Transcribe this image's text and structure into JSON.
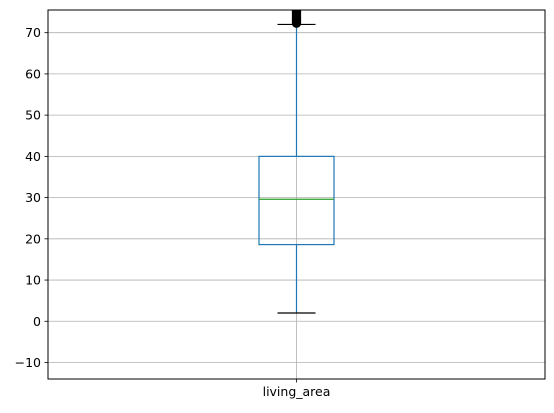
{
  "chart_data": {
    "type": "boxplot",
    "categories": [
      "living_area"
    ],
    "box": {
      "whisker_low": 2,
      "q1": 18.6,
      "median": 29.6,
      "q3": 40,
      "whisker_high": 72
    },
    "outliers": [
      72.3,
      72.8,
      73.3,
      73.8,
      74.3,
      74.8,
      75.3,
      75.8,
      76.3,
      77.0,
      78.0
    ],
    "ylim": [
      -14,
      75.5
    ],
    "yticks": [
      -10,
      0,
      10,
      20,
      30,
      40,
      50,
      60,
      70
    ],
    "grid": true,
    "colors": {
      "box": "#1f77b4",
      "median": "#2ca02c",
      "caps": "#000000",
      "outliers": "#000000",
      "grid": "#b0b0b0"
    }
  }
}
